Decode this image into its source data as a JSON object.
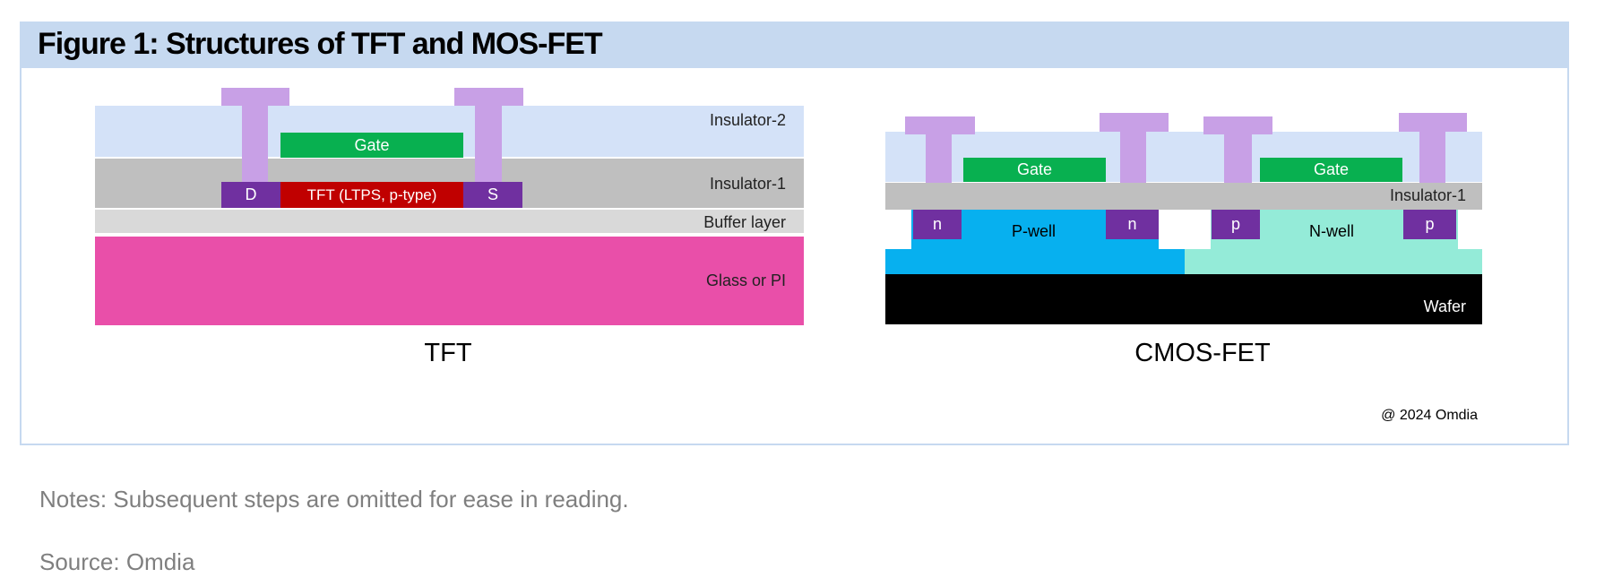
{
  "title": "Figure 1: Structures of TFT and MOS-FET",
  "colors": {
    "header": "#c6d9f0",
    "insulator_2": "#d4e2f8",
    "insulator_1": "#bfbfbf",
    "buffer": "#d9d9d9",
    "glass": "#e94fa9",
    "contact": "#c8a0e6",
    "gate": "#08b050",
    "tft_channel": "#c00000",
    "doped_region": "#7030a0",
    "p_well": "#07b0ef",
    "n_well": "#94ebd8",
    "wafer": "#000000"
  },
  "tft": {
    "caption": "TFT",
    "insulator_2": "Insulator-2",
    "insulator_1": "Insulator-1",
    "buffer": "Buffer layer",
    "substrate": "Glass or PI",
    "gate": "Gate",
    "drain": "D",
    "channel": "TFT (LTPS, p-type)",
    "source": "S"
  },
  "cmos": {
    "caption": "CMOS-FET",
    "insulator_1": "Insulator-1",
    "gate_1": "Gate",
    "gate_2": "Gate",
    "p_well": "P-well",
    "n_well": "N-well",
    "n_region": "n",
    "p_region": "p",
    "wafer": "Wafer"
  },
  "copyright": "@ 2024 Omdia",
  "notes": "Notes: Subsequent steps are omitted for ease in reading.",
  "source": "Source: Omdia"
}
